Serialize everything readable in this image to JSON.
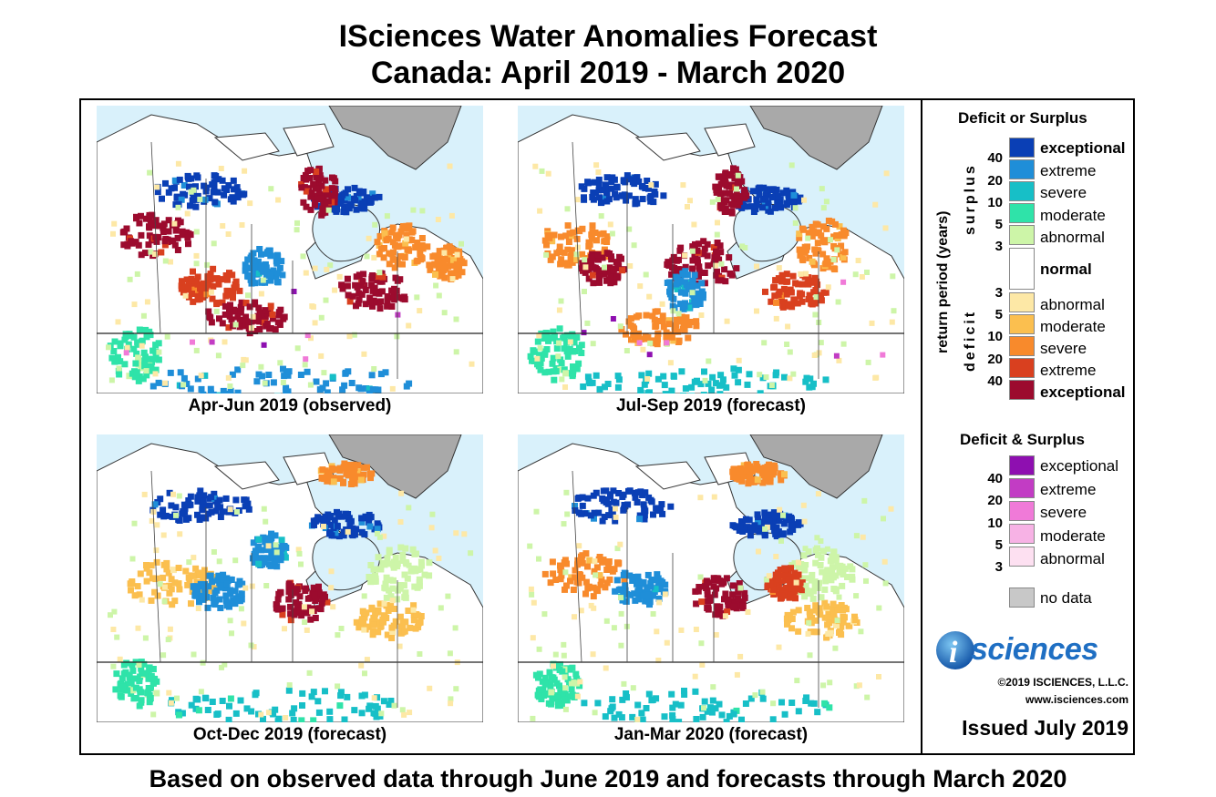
{
  "title": {
    "line1": "ISciences Water Anomalies Forecast",
    "line2": "Canada: April 2019 - March 2020"
  },
  "panels": [
    {
      "caption": "Apr-Jun 2019 (observed)"
    },
    {
      "caption": "Jul-Sep 2019 (forecast)"
    },
    {
      "caption": "Oct-Dec 2019 (forecast)"
    },
    {
      "caption": "Jan-Mar 2020 (forecast)"
    }
  ],
  "legend": {
    "deficit_or_surplus_title": "Deficit or Surplus",
    "axis_label": "return period (years)",
    "surplus_label": "surplus",
    "deficit_label": "deficit",
    "surplus_levels": [
      {
        "label": "exceptional",
        "color": "#0a3fb5",
        "bold": true
      },
      {
        "label": "extreme",
        "color": "#1f8ed8",
        "bold": false
      },
      {
        "label": "severe",
        "color": "#17bfc7",
        "bold": false
      },
      {
        "label": "moderate",
        "color": "#2fe3a9",
        "bold": false
      },
      {
        "label": "abnormal",
        "color": "#cdf5a8",
        "bold": false
      }
    ],
    "normal": {
      "label": "normal",
      "color": "#ffffff"
    },
    "deficit_levels": [
      {
        "label": "abnormal",
        "color": "#fde8a6",
        "bold": false
      },
      {
        "label": "moderate",
        "color": "#fbbf4f",
        "bold": false
      },
      {
        "label": "severe",
        "color": "#f88a2c",
        "bold": false
      },
      {
        "label": "extreme",
        "color": "#d9401f",
        "bold": false
      },
      {
        "label": "exceptional",
        "color": "#9c0b2e",
        "bold": true
      }
    ],
    "surplus_numbers": [
      "40",
      "20",
      "10",
      "5",
      "3"
    ],
    "deficit_numbers": [
      "3",
      "5",
      "10",
      "20",
      "40"
    ],
    "both_title": "Deficit & Surplus",
    "both_levels": [
      {
        "label": "exceptional",
        "color": "#8e0fb0"
      },
      {
        "label": "extreme",
        "color": "#c23cc4"
      },
      {
        "label": "severe",
        "color": "#f07ad8"
      },
      {
        "label": "moderate",
        "color": "#f7b2e5"
      },
      {
        "label": "abnormal",
        "color": "#fde0f1"
      }
    ],
    "both_numbers": [
      "40",
      "20",
      "10",
      "5",
      "3"
    ],
    "no_data": {
      "label": "no data",
      "color": "#c8c8c8"
    }
  },
  "logo": {
    "text": "sciences",
    "letter": "i"
  },
  "copyright": "©2019 ISCIENCES, L.L.C.",
  "website": "www.isciences.com",
  "issued": "Issued July 2019",
  "footer": "Based on observed data through June 2019 and forecasts through March 2020",
  "colors": {
    "water": "#d9f1fb",
    "land": "#ffffff",
    "greenland": "#a9a9a9"
  }
}
